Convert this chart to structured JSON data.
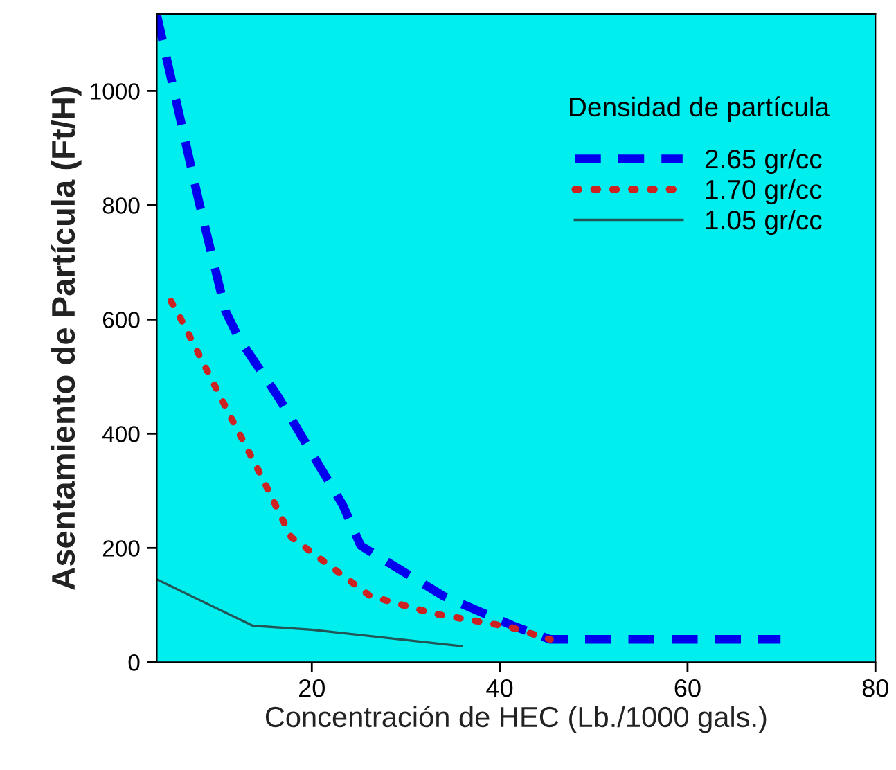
{
  "chart_data": {
    "type": "line",
    "xlabel": "Concentración de HEC (Lb./1000 gals.)",
    "ylabel": "Asentamiento de Partícula (Ft/H)",
    "legend_title": "Densidad de partícula",
    "legend": "top right",
    "grid": false,
    "marker": "none",
    "xlim": [
      3.5,
      80
    ],
    "xticks": [
      20,
      40,
      60,
      80
    ],
    "ylim": [
      0,
      1135
    ],
    "yticks": [
      0,
      200,
      400,
      600,
      800,
      1000
    ],
    "series": [
      {
        "name": "2.65 gr/cc",
        "color": "#0000ee",
        "line_style": "dashed",
        "x": [
          3.5,
          5.3,
          8,
          10.8,
          12.2,
          16.4,
          23.3,
          25.2,
          34,
          41.4,
          45.4,
          69.9
        ],
        "values": [
          1133,
          1002,
          805,
          615,
          568,
          465,
          275,
          204,
          116,
          64,
          40,
          40
        ]
      },
      {
        "name": "1.70 gr/cc",
        "color": "#cc2222",
        "line_style": "dotted",
        "x": [
          5,
          6,
          11.5,
          14.5,
          17.8,
          22.3,
          26.2,
          33,
          41,
          45.4
        ],
        "values": [
          632,
          603,
          425,
          330,
          219,
          164,
          116,
          85,
          62,
          40
        ]
      },
      {
        "name": "1.05 gr/cc",
        "color": "#225555",
        "line_style": "solid",
        "x": [
          3.5,
          13.7,
          20,
          36
        ],
        "values": [
          145,
          64,
          57,
          28
        ]
      }
    ]
  }
}
